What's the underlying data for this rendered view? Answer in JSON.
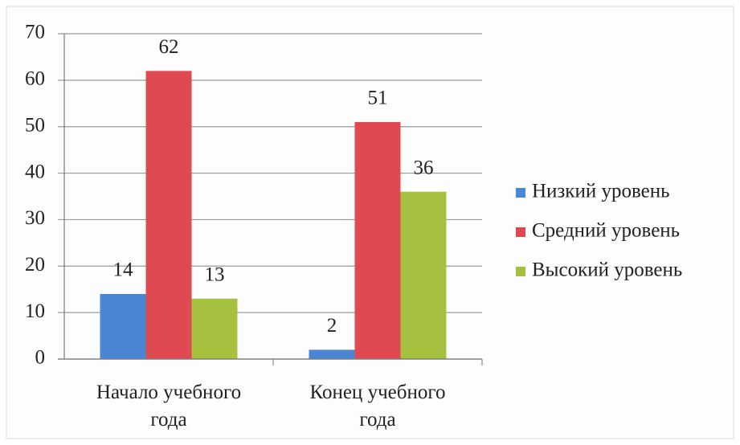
{
  "chart_data": {
    "type": "bar",
    "categories": [
      "Начало учебного года",
      "Конец учебного года"
    ],
    "series": [
      {
        "name": "Низкий уровень",
        "color": "#4a86d4",
        "values": [
          14,
          2
        ]
      },
      {
        "name": "Средний уровень",
        "color": "#df4a52",
        "values": [
          62,
          51
        ]
      },
      {
        "name": "Высокий уровень",
        "color": "#a6c13f",
        "values": [
          13,
          36
        ]
      }
    ],
    "ylim": [
      0,
      70
    ],
    "yticks": [
      0,
      10,
      20,
      30,
      40,
      50,
      60,
      70
    ],
    "grid": true,
    "legend": "right"
  }
}
